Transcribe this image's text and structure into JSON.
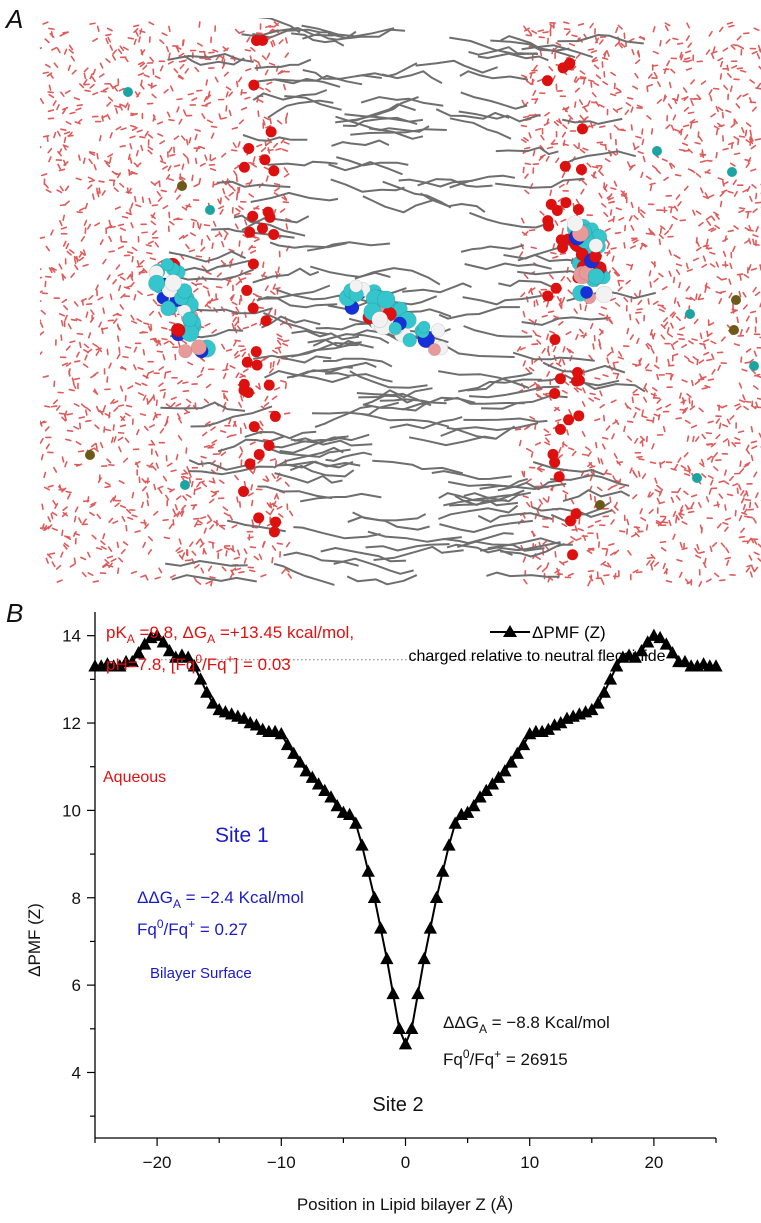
{
  "panel_a": {
    "label": "A"
  },
  "panel_b": {
    "label": "B"
  },
  "colors": {
    "water": "#e05a5a",
    "lipid": "#6e6e6e",
    "phosphate": "#dd1010",
    "ion_cyan": "#1ea3a3",
    "ion_olive": "#6b5a17",
    "carbon": "#35c5cc",
    "hydrogen": "#f2f2f2",
    "nitrogen": "#1530d8",
    "oxygen": "#e01010",
    "fluorine": "#e89a9a",
    "annotation_red": "#e01010",
    "annotation_blue": "#1a1acc",
    "series": "#000000"
  },
  "chart_data": {
    "type": "scatter",
    "title": "",
    "xlabel": "Position in Lipid bilayer Z (Å)",
    "ylabel": "ΔPMF (Z)",
    "xlim": [
      -25,
      25
    ],
    "ylim": [
      2.5,
      15
    ],
    "xticks": [
      -20,
      -10,
      0,
      10,
      20
    ],
    "yticks": [
      4,
      6,
      8,
      10,
      12,
      14
    ],
    "xtick_labels": [
      "−20",
      "−10",
      "0",
      "10",
      "20"
    ],
    "ytick_labels": [
      "4",
      "6",
      "8",
      "10",
      "12",
      "14"
    ],
    "reference_line_y": 13.45,
    "legend": {
      "position": "top-right",
      "entry": "ΔPMF (Z)",
      "subtitle": "charged relative to neutral flecainide"
    },
    "series": [
      {
        "name": "ΔPMF (Z)",
        "marker": "triangle",
        "points": [
          [
            -25,
            13.3
          ],
          [
            -24.5,
            13.3
          ],
          [
            -24,
            13.35
          ],
          [
            -23.5,
            13.3
          ],
          [
            -23,
            13.3
          ],
          [
            -22.5,
            13.4
          ],
          [
            -22,
            13.4
          ],
          [
            -21.5,
            13.6
          ],
          [
            -21,
            13.8
          ],
          [
            -20.5,
            13.95
          ],
          [
            -20,
            14.0
          ],
          [
            -19.5,
            13.85
          ],
          [
            -19,
            13.65
          ],
          [
            -18.5,
            13.5
          ],
          [
            -18,
            13.55
          ],
          [
            -17.5,
            13.5
          ],
          [
            -17,
            13.3
          ],
          [
            -16.5,
            13.0
          ],
          [
            -16,
            12.7
          ],
          [
            -15.5,
            12.45
          ],
          [
            -15,
            12.3
          ],
          [
            -14.5,
            12.25
          ],
          [
            -14,
            12.2
          ],
          [
            -13.5,
            12.15
          ],
          [
            -13,
            12.1
          ],
          [
            -12.5,
            12.0
          ],
          [
            -12,
            11.95
          ],
          [
            -11.5,
            11.85
          ],
          [
            -11,
            11.8
          ],
          [
            -10.5,
            11.8
          ],
          [
            -10,
            11.75
          ],
          [
            -9.5,
            11.5
          ],
          [
            -9,
            11.3
          ],
          [
            -8.5,
            11.1
          ],
          [
            -8,
            10.9
          ],
          [
            -7.5,
            10.75
          ],
          [
            -7,
            10.6
          ],
          [
            -6.5,
            10.45
          ],
          [
            -6,
            10.3
          ],
          [
            -5.5,
            10.1
          ],
          [
            -5,
            9.95
          ],
          [
            -4.5,
            9.9
          ],
          [
            -4,
            9.7
          ],
          [
            -3.5,
            9.2
          ],
          [
            -3,
            8.6
          ],
          [
            -2.5,
            8.0
          ],
          [
            -2,
            7.3
          ],
          [
            -1.5,
            6.6
          ],
          [
            -1,
            5.8
          ],
          [
            -0.5,
            5.0
          ],
          [
            0,
            4.65
          ],
          [
            0.5,
            5.0
          ],
          [
            1,
            5.8
          ],
          [
            1.5,
            6.6
          ],
          [
            2,
            7.3
          ],
          [
            2.5,
            8.0
          ],
          [
            3,
            8.6
          ],
          [
            3.5,
            9.2
          ],
          [
            4,
            9.7
          ],
          [
            4.5,
            9.9
          ],
          [
            5,
            9.95
          ],
          [
            5.5,
            10.1
          ],
          [
            6,
            10.3
          ],
          [
            6.5,
            10.45
          ],
          [
            7,
            10.6
          ],
          [
            7.5,
            10.75
          ],
          [
            8,
            10.9
          ],
          [
            8.5,
            11.1
          ],
          [
            9,
            11.3
          ],
          [
            9.5,
            11.5
          ],
          [
            10,
            11.75
          ],
          [
            10.5,
            11.8
          ],
          [
            11,
            11.8
          ],
          [
            11.5,
            11.85
          ],
          [
            12,
            11.95
          ],
          [
            12.5,
            12.0
          ],
          [
            13,
            12.1
          ],
          [
            13.5,
            12.15
          ],
          [
            14,
            12.2
          ],
          [
            14.5,
            12.25
          ],
          [
            15,
            12.3
          ],
          [
            15.5,
            12.45
          ],
          [
            16,
            12.7
          ],
          [
            16.5,
            13.0
          ],
          [
            17,
            13.3
          ],
          [
            17.5,
            13.5
          ],
          [
            18,
            13.55
          ],
          [
            18.5,
            13.5
          ],
          [
            19,
            13.65
          ],
          [
            19.5,
            13.85
          ],
          [
            20,
            14.0
          ],
          [
            20.5,
            13.95
          ],
          [
            21,
            13.8
          ],
          [
            21.5,
            13.6
          ],
          [
            22,
            13.4
          ],
          [
            22.5,
            13.4
          ],
          [
            23,
            13.3
          ],
          [
            23.5,
            13.3
          ],
          [
            24,
            13.35
          ],
          [
            24.5,
            13.3
          ],
          [
            25,
            13.3
          ]
        ]
      }
    ],
    "annotations": {
      "header_line1_main": "pK",
      "header_line1_sub": "A",
      "header_line1_mid": " =9.8, ΔG",
      "header_line1_sub2": "A",
      "header_line1_end": " =+13.45 kcal/mol,",
      "header_line2_a": "pH=7.8, [Fq",
      "header_line2_sup": "0",
      "header_line2_b": "/Fq",
      "header_line2_sup2": "+",
      "header_line2_c": "] = 0.03",
      "aqueous": "Aqueous",
      "site1": "Site 1",
      "site1_ddg_a": "ΔΔG",
      "site1_ddg_sub": "A",
      "site1_ddg_b": " = −2.4 Kcal/mol",
      "site1_ratio_a": "Fq",
      "site1_ratio_sup": "0",
      "site1_ratio_b": "/Fq",
      "site1_ratio_sup2": "+",
      "site1_ratio_c": " = 0.27",
      "bilayer_surface": "Bilayer Surface",
      "site2": "Site 2",
      "site2_ddg_a": "ΔΔG",
      "site2_ddg_sub": "A",
      "site2_ddg_b": " = −8.8 Kcal/mol",
      "site2_ratio_a": "Fq",
      "site2_ratio_sup": "0",
      "site2_ratio_b": "/Fq",
      "site2_ratio_sup2": "+",
      "site2_ratio_c": " = 26915"
    }
  }
}
